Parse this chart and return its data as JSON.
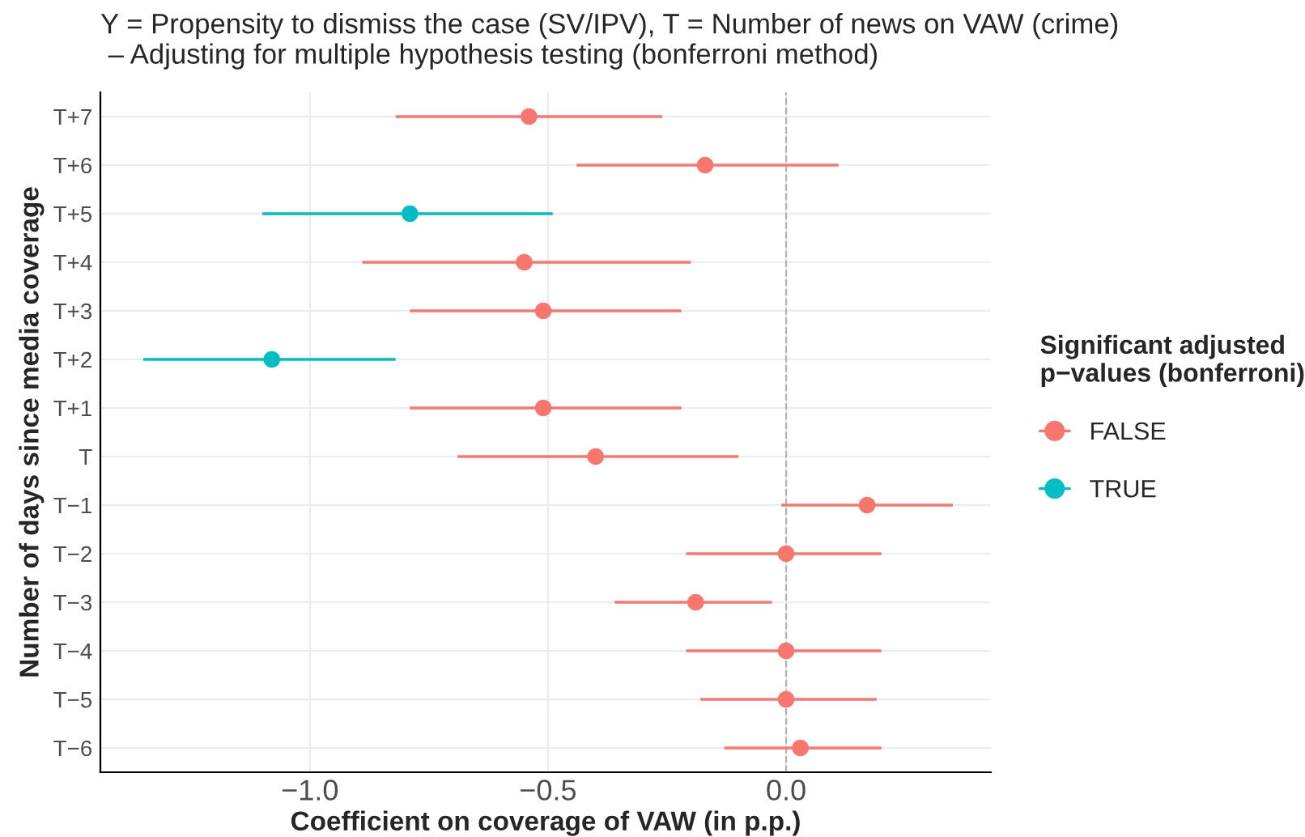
{
  "chart_data": {
    "type": "scatter",
    "orientation": "horizontal",
    "title": "Y = Propensity to dismiss the case (SV/IPV), T = Number of news on VAW (crime)\n – Adjusting for multiple hypothesis testing (bonferroni method)",
    "xlabel": "Coefficient on coverage of VAW (in p.p.)",
    "ylabel": "Number of days since media coverage",
    "legend_title": "Significant adjusted\np−values (bonferroni)",
    "legend": "right",
    "categories": [
      "T+7",
      "T+6",
      "T+5",
      "T+4",
      "T+3",
      "T+2",
      "T+1",
      "T",
      "T−1",
      "T−2",
      "T−3",
      "T−4",
      "T−5",
      "T−6"
    ],
    "series": [
      {
        "name": "FALSE",
        "color": "#f8766d",
        "values": [
          -0.54,
          -0.17,
          null,
          -0.55,
          -0.51,
          null,
          -0.51,
          -0.4,
          0.17,
          0.0,
          -0.19,
          0.0,
          0.0,
          0.03
        ],
        "errors": [
          [
            -0.82,
            -0.26
          ],
          [
            -0.44,
            0.11
          ],
          null,
          [
            -0.89,
            -0.2
          ],
          [
            -0.79,
            -0.22
          ],
          null,
          [
            -0.79,
            -0.22
          ],
          [
            -0.69,
            -0.1
          ],
          [
            -0.01,
            0.35
          ],
          [
            -0.21,
            0.2
          ],
          [
            -0.36,
            -0.03
          ],
          [
            -0.21,
            0.2
          ],
          [
            -0.18,
            0.19
          ],
          [
            -0.13,
            0.2
          ]
        ]
      },
      {
        "name": "TRUE",
        "color": "#00bfc4",
        "values": [
          null,
          null,
          -0.79,
          null,
          null,
          -1.08,
          null,
          null,
          null,
          null,
          null,
          null,
          null,
          null
        ],
        "errors": [
          null,
          null,
          [
            -1.1,
            -0.49
          ],
          null,
          null,
          [
            -1.35,
            -0.82
          ],
          null,
          null,
          null,
          null,
          null,
          null,
          null,
          null
        ]
      }
    ],
    "xlim": [
      -1.44,
      0.43
    ],
    "xticks": [
      {
        "value": -1.0,
        "label": "−1.0"
      },
      {
        "value": -0.5,
        "label": "−0.5"
      },
      {
        "value": 0.0,
        "label": "0.0"
      }
    ],
    "ref_lines": [
      {
        "axis": "x",
        "value": 0.0,
        "color": "#b3b3b3",
        "line_style": "dashed"
      }
    ],
    "grid": true,
    "marker": "circle"
  }
}
